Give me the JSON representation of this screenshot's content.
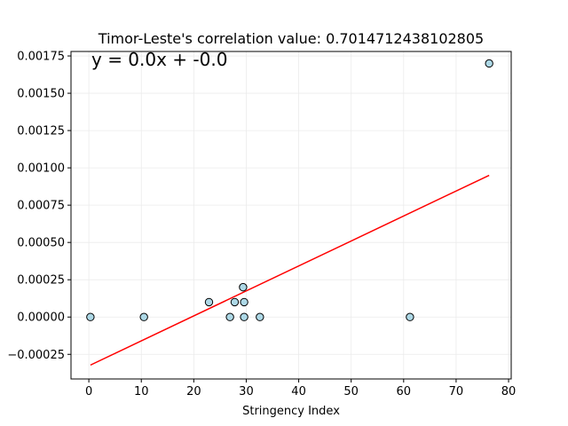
{
  "chart_data": {
    "type": "scatter",
    "title": "Timor-Leste's correlation value: 0.7014712438102805",
    "annotation": "y = 0.0x + -0.0",
    "xlabel": "Stringency Index",
    "ylabel": "",
    "xlim": [
      -3.4,
      80.5
    ],
    "ylim": [
      -0.000415,
      0.00178
    ],
    "x_ticks": [
      0,
      10,
      20,
      30,
      40,
      50,
      60,
      70,
      80
    ],
    "y_ticks": [
      -0.00025,
      0,
      0.00025,
      0.0005,
      0.00075,
      0.001,
      0.00125,
      0.0015,
      0.00175
    ],
    "x_tick_labels": [
      "0",
      "10",
      "20",
      "30",
      "40",
      "50",
      "60",
      "70",
      "80"
    ],
    "y_tick_labels": [
      "−0.00025",
      "0.00000",
      "0.00025",
      "0.00050",
      "0.00075",
      "0.00100",
      "0.00125",
      "0.00150",
      "0.00175"
    ],
    "grid": true,
    "points": [
      {
        "x": 0.3,
        "y": 0.0
      },
      {
        "x": 10.5,
        "y": 0.0
      },
      {
        "x": 22.9,
        "y": 0.0001
      },
      {
        "x": 26.9,
        "y": 0.0
      },
      {
        "x": 27.8,
        "y": 0.0001
      },
      {
        "x": 29.4,
        "y": 0.0002
      },
      {
        "x": 29.6,
        "y": 0.0001
      },
      {
        "x": 29.6,
        "y": 0.0
      },
      {
        "x": 32.6,
        "y": 0.0
      },
      {
        "x": 61.2,
        "y": 0.0
      },
      {
        "x": 76.3,
        "y": 0.0017
      }
    ],
    "fit_line": {
      "x": [
        0.3,
        76.3
      ],
      "y": [
        -0.000322,
        0.00095
      ]
    },
    "colors": {
      "marker_fill": "#add8e6",
      "marker_edge": "#000000",
      "fit_line": "#ff0000",
      "grid": "#ebebeb",
      "axes": "#000000"
    }
  }
}
